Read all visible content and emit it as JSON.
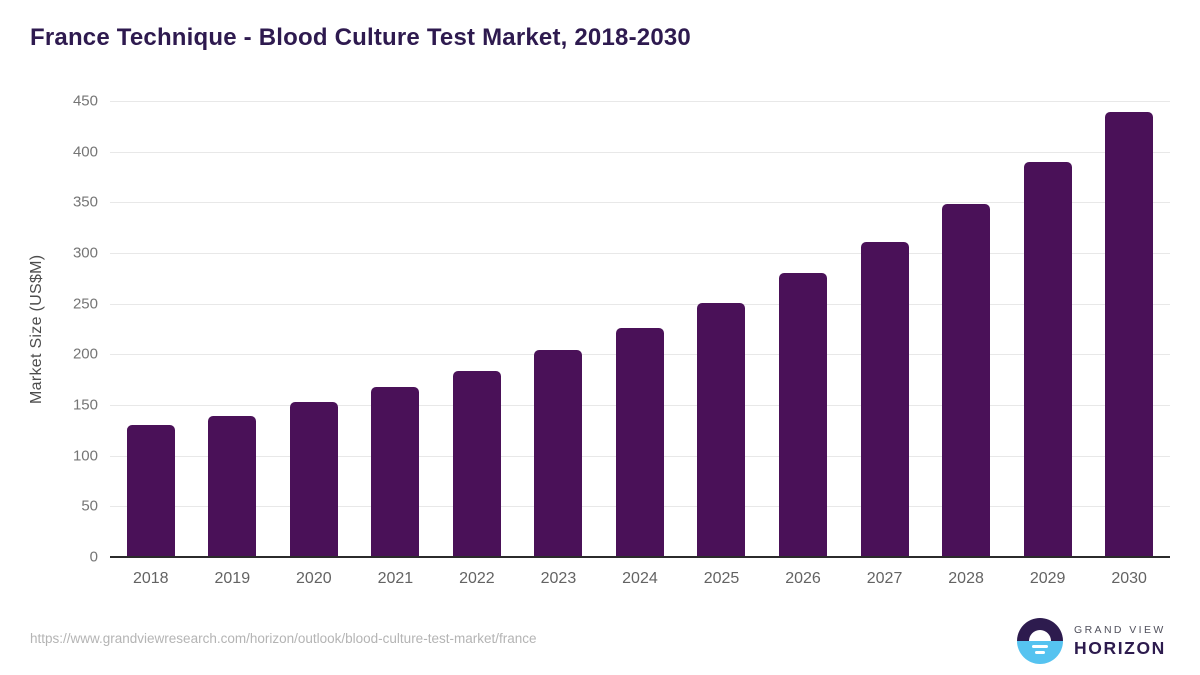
{
  "title": "France Technique - Blood Culture Test Market, 2018-2030",
  "chart_data": {
    "type": "bar",
    "title": "France Technique - Blood Culture Test Market, 2018-2030",
    "categories": [
      "2018",
      "2019",
      "2020",
      "2021",
      "2022",
      "2023",
      "2024",
      "2025",
      "2026",
      "2027",
      "2028",
      "2029",
      "2030"
    ],
    "values": [
      130,
      139,
      153,
      168,
      184,
      204,
      226,
      251,
      280,
      311,
      348,
      390,
      439
    ],
    "xlabel": "",
    "ylabel": "Market Size (US$M)",
    "ylim": [
      0,
      450
    ],
    "ytick_step": 50,
    "yticks": [
      0,
      50,
      100,
      150,
      200,
      250,
      300,
      350,
      400,
      450
    ],
    "grid": true,
    "legend": false,
    "bar_color": "#4a1158"
  },
  "footer": {
    "source_url": "https://www.grandviewresearch.com/horizon/outlook/blood-culture-test-market/france",
    "logo": {
      "line1": "GRAND VIEW",
      "line2": "HORIZON"
    }
  },
  "colors": {
    "bar": "#4a1158",
    "title_text": "#2e1a4f",
    "gridline": "#e8e8e8",
    "axis_line": "#2b2b2b",
    "tick_label": "#757575",
    "x_label": "#636363",
    "url_text": "#b4b4b4",
    "logo_dark": "#2d1b4e",
    "logo_blue": "#56c3f0"
  }
}
